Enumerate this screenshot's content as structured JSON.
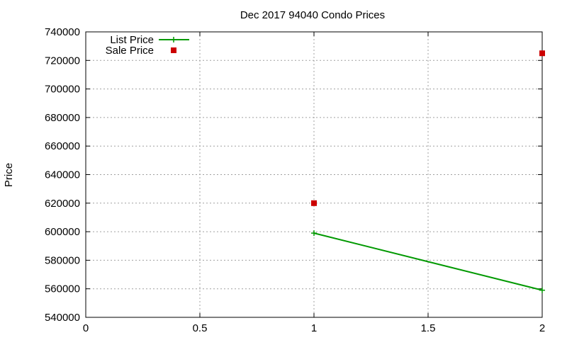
{
  "chart_data": {
    "type": "line",
    "title": "Dec 2017 94040 Condo Prices",
    "xlabel": "",
    "ylabel": "Price",
    "xlim": [
      0,
      2
    ],
    "ylim": [
      540000,
      740000
    ],
    "x_ticks": [
      0,
      0.5,
      1,
      1.5,
      2
    ],
    "x_tick_labels": [
      "0",
      "0.5",
      "1",
      "1.5",
      "2"
    ],
    "y_ticks": [
      540000,
      560000,
      580000,
      600000,
      620000,
      640000,
      660000,
      680000,
      700000,
      720000,
      740000
    ],
    "y_tick_labels": [
      "540000",
      "560000",
      "580000",
      "600000",
      "620000",
      "640000",
      "660000",
      "680000",
      "700000",
      "720000",
      "740000"
    ],
    "grid": true,
    "legend_position": "top-left",
    "series": [
      {
        "name": "List Price",
        "style": "linespoints",
        "marker": "plus",
        "color": "#009900",
        "points": [
          [
            1,
            599000
          ],
          [
            2,
            559000
          ]
        ]
      },
      {
        "name": "Sale Price",
        "style": "points",
        "marker": "square",
        "color": "#cc0000",
        "points": [
          [
            1,
            620000
          ],
          [
            2,
            725000
          ]
        ]
      }
    ]
  }
}
